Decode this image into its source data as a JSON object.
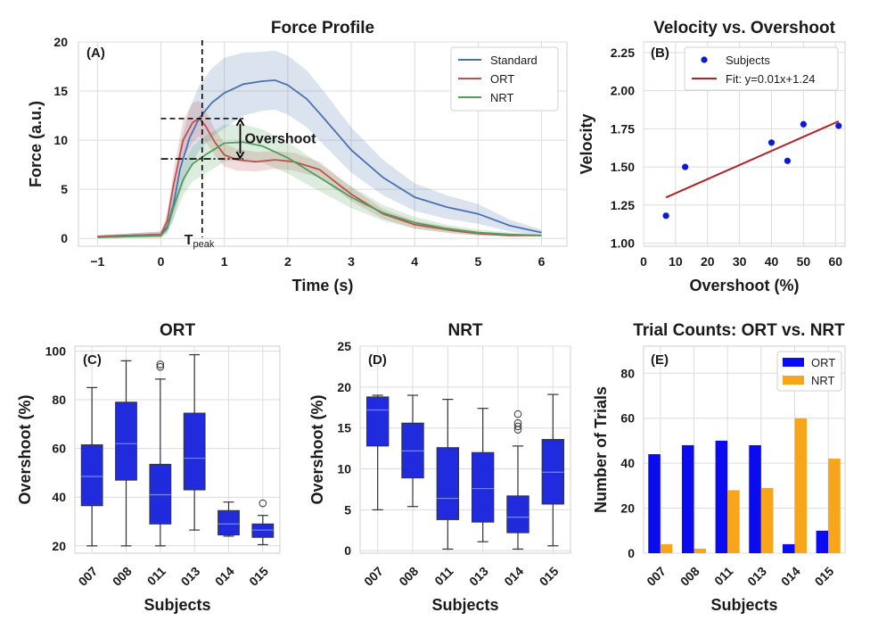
{
  "chart_data": [
    {
      "id": "A",
      "type": "line",
      "panel_label": "(A)",
      "title": "Force Profile",
      "xlabel": "Time (s)",
      "ylabel": "Force (a.u.)",
      "xlim": [
        -1.3,
        6.4
      ],
      "ylim": [
        -0.8,
        20
      ],
      "xticks": [
        -1,
        0,
        1,
        2,
        3,
        4,
        5,
        6
      ],
      "yticks": [
        0,
        5,
        10,
        15,
        20
      ],
      "grid": true,
      "legend_placement": "top-right",
      "series": [
        {
          "name": "Standard",
          "color": "#4a72b0",
          "x": [
            -1.0,
            0.0,
            0.1,
            0.2,
            0.3,
            0.45,
            0.6,
            0.8,
            1.0,
            1.3,
            1.6,
            1.8,
            2.0,
            2.3,
            2.6,
            3.0,
            3.5,
            4.0,
            4.5,
            5.0,
            5.5,
            6.0
          ],
          "mean": [
            0.2,
            0.4,
            1.2,
            3.5,
            7.0,
            10.2,
            12.2,
            13.8,
            14.8,
            15.7,
            16.0,
            16.1,
            15.6,
            14.2,
            12.0,
            9.0,
            6.2,
            4.2,
            3.2,
            2.5,
            1.3,
            0.6
          ],
          "band": [
            0.1,
            0.3,
            0.6,
            1.5,
            2.5,
            3.0,
            3.3,
            3.5,
            3.6,
            3.2,
            3.0,
            3.0,
            3.0,
            2.9,
            2.7,
            2.3,
            1.8,
            1.4,
            1.2,
            1.0,
            0.6,
            0.3
          ]
        },
        {
          "name": "ORT",
          "color": "#c0504d",
          "x": [
            -1.0,
            0.0,
            0.1,
            0.2,
            0.35,
            0.5,
            0.6,
            0.7,
            0.85,
            1.0,
            1.2,
            1.5,
            1.8,
            2.1,
            2.5,
            3.0,
            3.5,
            4.0,
            4.6,
            5.0,
            5.5,
            6.0
          ],
          "mean": [
            0.2,
            0.4,
            1.8,
            5.5,
            10.0,
            11.8,
            12.2,
            11.5,
            9.8,
            8.5,
            8.0,
            7.8,
            8.0,
            7.8,
            7.0,
            4.5,
            2.5,
            1.4,
            0.8,
            0.5,
            0.3,
            0.3
          ],
          "band": [
            0.1,
            0.3,
            0.8,
            1.5,
            2.0,
            2.0,
            1.8,
            1.6,
            1.3,
            1.2,
            1.1,
            1.0,
            0.9,
            0.9,
            0.8,
            0.7,
            0.5,
            0.4,
            0.3,
            0.2,
            0.1,
            0.1
          ]
        },
        {
          "name": "NRT",
          "color": "#4f9f5c",
          "x": [
            -1.0,
            0.0,
            0.1,
            0.2,
            0.35,
            0.5,
            0.7,
            0.9,
            1.0,
            1.3,
            1.6,
            2.0,
            2.5,
            3.0,
            3.5,
            4.0,
            4.5,
            5.0,
            5.5,
            6.0
          ],
          "mean": [
            0.1,
            0.3,
            1.0,
            3.2,
            6.0,
            7.6,
            8.5,
            9.3,
            9.7,
            9.8,
            9.4,
            8.2,
            6.2,
            4.2,
            2.6,
            1.6,
            1.0,
            0.6,
            0.4,
            0.3
          ],
          "band": [
            0.1,
            0.2,
            0.5,
            1.2,
            1.6,
            1.8,
            1.9,
            1.9,
            1.9,
            1.8,
            1.7,
            1.6,
            1.4,
            1.1,
            0.8,
            0.6,
            0.4,
            0.3,
            0.2,
            0.1
          ]
        }
      ],
      "annotations": {
        "tpeak_main": "T",
        "tpeak_sub": "peak",
        "tpeak_x": 0.65,
        "overshoot_label": "Overshoot",
        "overshoot_top_y": 12.2,
        "overshoot_bottom_y": 8.1
      }
    },
    {
      "id": "B",
      "type": "scatter",
      "panel_label": "(B)",
      "title": "Velocity vs. Overshoot",
      "xlabel": "Overshoot (%)",
      "ylabel": "Velocity",
      "xlim": [
        0,
        63
      ],
      "ylim": [
        0.98,
        2.32
      ],
      "xticks": [
        0,
        10,
        20,
        30,
        40,
        50,
        60
      ],
      "yticks": [
        1.0,
        1.25,
        1.5,
        1.75,
        2.0,
        2.25
      ],
      "ytick_labels": [
        "1.00",
        "1.25",
        "1.50",
        "1.75",
        "2.00",
        "2.25"
      ],
      "grid": true,
      "legend_placement": "top-left",
      "points": {
        "name": "Subjects",
        "color": "#0b1ad6",
        "x": [
          7,
          13,
          40,
          45,
          50,
          61
        ],
        "y": [
          1.18,
          1.5,
          1.66,
          1.54,
          1.78,
          1.77
        ]
      },
      "fit": {
        "name": "Fit: y=0.01x+1.24",
        "color": "#b22222",
        "x": [
          7,
          61
        ],
        "y": [
          1.3,
          1.8
        ]
      }
    },
    {
      "id": "C",
      "type": "box",
      "panel_label": "(C)",
      "title": "ORT",
      "xlabel": "Subjects",
      "ylabel": "Overshoot (%)",
      "ylim": [
        17,
        102
      ],
      "yticks": [
        20,
        40,
        60,
        80,
        100
      ],
      "grid": true,
      "box_color": "#1f2bdc",
      "categories": [
        "007",
        "008",
        "011",
        "013",
        "014",
        "015"
      ],
      "boxes": [
        {
          "min": 20,
          "q1": 36.5,
          "median": 48.5,
          "q3": 61.5,
          "max": 85,
          "outliers": []
        },
        {
          "min": 20,
          "q1": 47,
          "median": 62,
          "q3": 79,
          "max": 96,
          "outliers": []
        },
        {
          "min": 20,
          "q1": 29,
          "median": 41,
          "q3": 53.5,
          "max": 88.5,
          "outliers": [
            93.5,
            94.5
          ]
        },
        {
          "min": 26.5,
          "q1": 43,
          "median": 56,
          "q3": 74.5,
          "max": 98.5,
          "outliers": []
        },
        {
          "min": 24,
          "q1": 24.5,
          "median": 29,
          "q3": 34.5,
          "max": 38,
          "outliers": []
        },
        {
          "min": 20.5,
          "q1": 23.5,
          "median": 26.5,
          "q3": 29,
          "max": 32.5,
          "outliers": [
            37.5
          ]
        }
      ]
    },
    {
      "id": "D",
      "type": "box",
      "panel_label": "(D)",
      "title": "NRT",
      "xlabel": "Subjects",
      "ylabel": "Overshoot (%)",
      "ylim": [
        -0.3,
        25
      ],
      "yticks": [
        0,
        5,
        10,
        15,
        20,
        25
      ],
      "grid": true,
      "box_color": "#1f2bdc",
      "categories": [
        "007",
        "008",
        "011",
        "013",
        "014",
        "015"
      ],
      "boxes": [
        {
          "min": 5,
          "q1": 12.8,
          "median": 17.2,
          "q3": 18.8,
          "max": 19.0,
          "outliers": []
        },
        {
          "min": 5.4,
          "q1": 8.9,
          "median": 12.2,
          "q3": 15.6,
          "max": 19.0,
          "outliers": []
        },
        {
          "min": 0.2,
          "q1": 3.8,
          "median": 6.4,
          "q3": 12.6,
          "max": 18.5,
          "outliers": []
        },
        {
          "min": 1.1,
          "q1": 3.5,
          "median": 7.6,
          "q3": 12.0,
          "max": 17.4,
          "outliers": []
        },
        {
          "min": 0.2,
          "q1": 2.2,
          "median": 4.1,
          "q3": 6.7,
          "max": 12.8,
          "outliers": [
            14.8,
            15.2,
            15.6,
            16.7
          ]
        },
        {
          "min": 0.6,
          "q1": 5.7,
          "median": 9.6,
          "q3": 13.6,
          "max": 19.1,
          "outliers": []
        }
      ]
    },
    {
      "id": "E",
      "type": "bar",
      "panel_label": "(E)",
      "title": "Trial Counts: ORT vs. NRT",
      "xlabel": "Subjects",
      "ylabel": "Number of Trials",
      "ylim": [
        0,
        92
      ],
      "yticks": [
        0,
        20,
        40,
        60,
        80
      ],
      "grid": true,
      "legend_placement": "top-right",
      "categories": [
        "007",
        "008",
        "011",
        "013",
        "014",
        "015"
      ],
      "series": [
        {
          "name": "ORT",
          "color": "#0b0bf0",
          "values": [
            44,
            48,
            50,
            48,
            4,
            10
          ]
        },
        {
          "name": "NRT",
          "color": "#f8a51c",
          "values": [
            4,
            2,
            28,
            29,
            60,
            42
          ]
        }
      ]
    }
  ]
}
